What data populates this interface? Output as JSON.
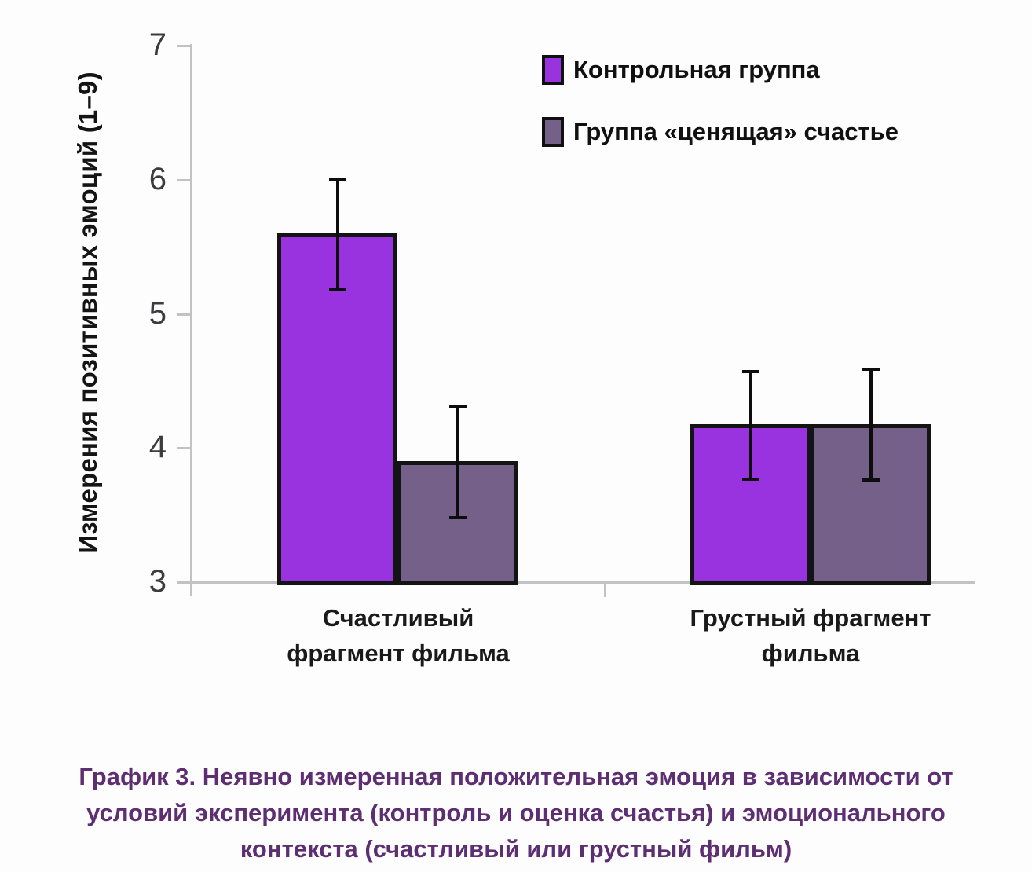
{
  "chart_data": {
    "type": "bar",
    "title": "",
    "xlabel": "",
    "ylabel": "Измерения позитивных эмоций (1–9)",
    "ylim": [
      3,
      7
    ],
    "yticks": [
      3,
      4,
      5,
      6,
      7
    ],
    "grid": false,
    "legend_position": "top-center",
    "categories": [
      "Счастливый фрагмент фильма",
      "Грустный фрагмент фильма"
    ],
    "category_label_lines": [
      [
        "Счастливый",
        "фрагмент фильма"
      ],
      [
        "Грустный фрагмент",
        "фильма"
      ]
    ],
    "series": [
      {
        "key": "control-group",
        "name": "Контрольная группа",
        "color": "#9933e0",
        "values": [
          5.6,
          4.18
        ],
        "error_low": [
          5.18,
          3.77
        ],
        "error_high": [
          6.0,
          4.57
        ]
      },
      {
        "key": "valuing-happiness-group",
        "name": "Группа «ценящая» счастье",
        "color": "#75608a",
        "values": [
          3.9,
          4.18
        ],
        "error_low": [
          3.48,
          3.76
        ],
        "error_high": [
          4.31,
          4.59
        ]
      }
    ]
  },
  "caption": {
    "lines": [
      "График 3. Неявно измеренная положительная эмоция в зависимости от",
      "условий эксперимента (контроль и оценка счастья) и эмоционального",
      "контекста (счастливый или грустный фильм)"
    ]
  },
  "colors": {
    "background": "#fdfdfe",
    "axis": "#c2c2c6",
    "bar_border": "#141414",
    "error_bar": "#0d0d0d",
    "caption_text": "#5d2e71",
    "tick_text": "#3c3c3e"
  }
}
